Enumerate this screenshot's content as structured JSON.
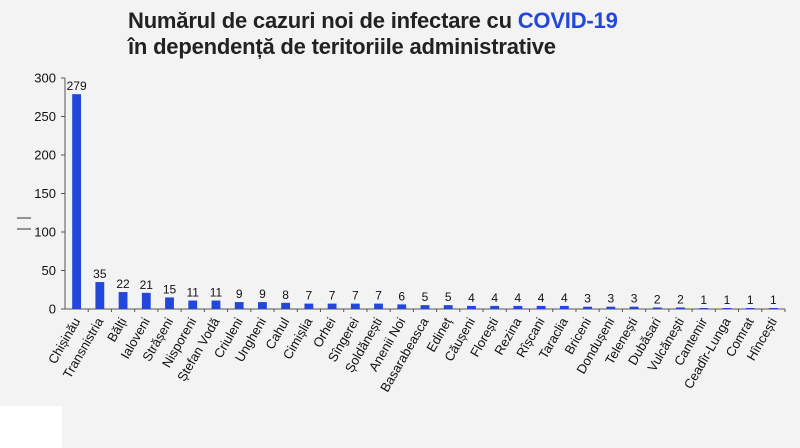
{
  "title": {
    "line1_prefix": "Numărul de cazuri noi de infectare cu ",
    "line1_accent": "COVID-19",
    "line2": "în dependență de teritoriile administrative"
  },
  "colors": {
    "bar": "#2347d8",
    "accent": "#2347d8",
    "axis": "#555555",
    "background": "#f3f3f3"
  },
  "chart_data": {
    "type": "bar",
    "title": "Numărul de cazuri noi de infectare cu COVID-19 în dependență de teritoriile administrative",
    "xlabel": "",
    "ylabel": "",
    "ylim": [
      0,
      300
    ],
    "yticks": [
      0,
      50,
      100,
      150,
      200,
      250,
      300
    ],
    "grid": false,
    "categories": [
      "Chișinău",
      "Transnistria",
      "Bălți",
      "Ialoveni",
      "Strășeni",
      "Nisporeni",
      "Ștefan Vodă",
      "Criuleni",
      "Ungheni",
      "Cahul",
      "Cimișlia",
      "Orhei",
      "Sîngerei",
      "Șoldănești",
      "Anenii Noi",
      "Basarabeasca",
      "Edineț",
      "Căușeni",
      "Florești",
      "Rezina",
      "Rîșcani",
      "Taraclia",
      "Briceni",
      "Dondușeni",
      "Telenești",
      "Dubăsari",
      "Vulcănești",
      "Cantemir",
      "Ceadîr-Lunga",
      "Comrat",
      "Hîncești"
    ],
    "values": [
      279,
      35,
      22,
      21,
      15,
      11,
      11,
      9,
      9,
      8,
      7,
      7,
      7,
      7,
      6,
      5,
      5,
      4,
      4,
      4,
      4,
      4,
      3,
      3,
      3,
      2,
      2,
      1,
      1,
      1,
      1
    ]
  }
}
